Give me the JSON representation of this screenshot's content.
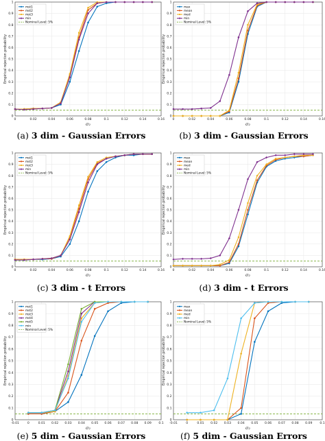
{
  "captions": [
    {
      "label": "(a)",
      "bold": "3 dim - Gaussian Errors"
    },
    {
      "label": "(b)",
      "bold": "3 dim - Gaussian Errors"
    },
    {
      "label": "(c)",
      "bold": "3 dim - t Errors"
    },
    {
      "label": "(d)",
      "bold": "3 dim - t Errors"
    },
    {
      "label": "(e)",
      "bold": "5 dim - Gaussian Errors"
    },
    {
      "label": "(f)",
      "bold": "5 dim - Gaussian Errors"
    }
  ],
  "colors": {
    "blue": "#0072BD",
    "orange": "#D95319",
    "yellow": "#EDB120",
    "purple": "#7E2F8E",
    "green": "#77AC30",
    "cyan": "#4DBEEE",
    "nominal": "#77AC30",
    "grid": "#e6e6e6"
  },
  "chart_data": [
    {
      "type": "line",
      "xlabel": "σ₂",
      "ylabel": "Empirical rejection probability",
      "xlim": [
        0,
        0.16
      ],
      "ylim": [
        0,
        1
      ],
      "xticks": [
        "0",
        "0.02",
        "0.04",
        "0.06",
        "0.08",
        "0.1",
        "0.12",
        "0.14",
        "0.16"
      ],
      "yticks": [
        "0",
        "0.1",
        "0.2",
        "0.3",
        "0.4",
        "0.5",
        "0.6",
        "0.7",
        "0.8",
        "0.9",
        "1"
      ],
      "grid": true,
      "legend_position": "top-left",
      "x": [
        0,
        0.01,
        0.02,
        0.03,
        0.04,
        0.05,
        0.06,
        0.07,
        0.08,
        0.09,
        0.1,
        0.11,
        0.12,
        0.13,
        0.14,
        0.15
      ],
      "series": [
        {
          "name": "mst1",
          "color": "#0072BD",
          "values": [
            0.06,
            0.06,
            0.065,
            0.065,
            0.07,
            0.1,
            0.3,
            0.57,
            0.82,
            0.96,
            0.99,
            1,
            1,
            1,
            1,
            1
          ]
        },
        {
          "name": "mst2",
          "color": "#D95319",
          "values": [
            0.06,
            0.06,
            0.065,
            0.065,
            0.07,
            0.12,
            0.36,
            0.69,
            0.93,
            0.99,
            1,
            1,
            1,
            1,
            1,
            1
          ]
        },
        {
          "name": "mst3",
          "color": "#EDB120",
          "values": [
            0.06,
            0.06,
            0.065,
            0.065,
            0.07,
            0.12,
            0.37,
            0.73,
            0.95,
            1,
            1,
            1,
            1,
            1,
            1,
            1
          ]
        },
        {
          "name": "min",
          "color": "#7E2F8E",
          "values": [
            0.06,
            0.055,
            0.06,
            0.065,
            0.07,
            0.11,
            0.34,
            0.67,
            0.9,
            0.99,
            1,
            1,
            1,
            1,
            1,
            1
          ]
        }
      ],
      "nominal": {
        "name": "Nominal Level: 5%",
        "value": 0.05
      }
    },
    {
      "type": "line",
      "xlabel": "σ₂",
      "ylabel": "Empirical rejection probability",
      "xlim": [
        0,
        0.16
      ],
      "ylim": [
        0,
        1
      ],
      "xticks": [
        "0",
        "0.02",
        "0.04",
        "0.06",
        "0.08",
        "0.1",
        "0.12",
        "0.14",
        "0.16"
      ],
      "yticks": [
        "0",
        "0.1",
        "0.2",
        "0.3",
        "0.4",
        "0.5",
        "0.6",
        "0.7",
        "0.8",
        "0.9",
        "1"
      ],
      "grid": true,
      "legend_position": "top-left",
      "x": [
        0,
        0.01,
        0.02,
        0.03,
        0.04,
        0.05,
        0.06,
        0.07,
        0.08,
        0.09,
        0.1,
        0.11,
        0.12,
        0.13,
        0.14,
        0.15
      ],
      "series": [
        {
          "name": "max",
          "color": "#0072BD",
          "values": [
            0,
            0,
            0,
            0,
            0,
            0,
            0.03,
            0.3,
            0.72,
            0.96,
            1,
            1,
            1,
            1,
            1,
            1
          ]
        },
        {
          "name": "mean",
          "color": "#D95319",
          "values": [
            0,
            0,
            0,
            0,
            0,
            0,
            0.04,
            0.33,
            0.75,
            0.97,
            1,
            1,
            1,
            1,
            1,
            1
          ]
        },
        {
          "name": "med",
          "color": "#EDB120",
          "values": [
            0,
            0,
            0,
            0,
            0,
            0,
            0.05,
            0.38,
            0.8,
            0.98,
            1,
            1,
            1,
            1,
            1,
            1
          ]
        },
        {
          "name": "min",
          "color": "#7E2F8E",
          "values": [
            0.06,
            0.06,
            0.06,
            0.065,
            0.07,
            0.13,
            0.36,
            0.69,
            0.92,
            0.99,
            1,
            1,
            1,
            1,
            1,
            1
          ]
        }
      ],
      "nominal": {
        "name": "Nominal Level: 5%",
        "value": 0.05
      }
    },
    {
      "type": "line",
      "xlabel": "σ₂",
      "ylabel": "Empirical rejection probability",
      "xlim": [
        0,
        0.16
      ],
      "ylim": [
        0,
        1
      ],
      "xticks": [
        "0",
        "0.02",
        "0.04",
        "0.06",
        "0.08",
        "0.1",
        "0.12",
        "0.14",
        "0.16"
      ],
      "yticks": [
        "0",
        "0.1",
        "0.2",
        "0.3",
        "0.4",
        "0.5",
        "0.6",
        "0.7",
        "0.8",
        "0.9",
        "1"
      ],
      "grid": true,
      "legend_position": "top-left",
      "x": [
        0,
        0.01,
        0.02,
        0.03,
        0.04,
        0.05,
        0.06,
        0.07,
        0.08,
        0.09,
        0.1,
        0.11,
        0.12,
        0.13,
        0.14,
        0.15
      ],
      "series": [
        {
          "name": "mst1",
          "color": "#0072BD",
          "values": [
            0.06,
            0.06,
            0.065,
            0.065,
            0.07,
            0.09,
            0.2,
            0.4,
            0.66,
            0.84,
            0.92,
            0.96,
            0.98,
            0.98,
            0.99,
            0.99
          ]
        },
        {
          "name": "mst2",
          "color": "#D95319",
          "values": [
            0.065,
            0.065,
            0.065,
            0.07,
            0.07,
            0.1,
            0.26,
            0.51,
            0.77,
            0.91,
            0.95,
            0.97,
            0.98,
            0.99,
            0.99,
            0.99
          ]
        },
        {
          "name": "mst3",
          "color": "#EDB120",
          "values": [
            0.065,
            0.065,
            0.065,
            0.07,
            0.075,
            0.1,
            0.27,
            0.54,
            0.79,
            0.92,
            0.96,
            0.97,
            0.98,
            0.99,
            0.99,
            0.99
          ]
        },
        {
          "name": "min",
          "color": "#7E2F8E",
          "values": [
            0.06,
            0.06,
            0.065,
            0.07,
            0.075,
            0.1,
            0.24,
            0.48,
            0.74,
            0.9,
            0.95,
            0.97,
            0.98,
            0.99,
            0.99,
            0.99
          ]
        }
      ],
      "nominal": {
        "name": "Nominal Level: 5%",
        "value": 0.05
      }
    },
    {
      "type": "line",
      "xlabel": "σ₂",
      "ylabel": "Empirical rejection probability",
      "xlim": [
        0,
        0.16
      ],
      "ylim": [
        0,
        1
      ],
      "xticks": [
        "0",
        "0.02",
        "0.04",
        "0.06",
        "0.08",
        "0.1",
        "0.12",
        "0.14",
        "0.16"
      ],
      "yticks": [
        "0",
        "0.1",
        "0.2",
        "0.3",
        "0.4",
        "0.5",
        "0.6",
        "0.7",
        "0.8",
        "0.9",
        "1"
      ],
      "grid": true,
      "legend_position": "top-left",
      "x": [
        0,
        0.01,
        0.02,
        0.03,
        0.04,
        0.05,
        0.06,
        0.07,
        0.08,
        0.09,
        0.1,
        0.11,
        0.12,
        0.13,
        0.14,
        0.15
      ],
      "series": [
        {
          "name": "max",
          "color": "#0072BD",
          "values": [
            0.01,
            0.01,
            0.01,
            0.01,
            0.01,
            0.01,
            0.03,
            0.18,
            0.46,
            0.74,
            0.88,
            0.93,
            0.95,
            0.96,
            0.97,
            0.98
          ]
        },
        {
          "name": "mean",
          "color": "#D95319",
          "values": [
            0.01,
            0.01,
            0.01,
            0.01,
            0.01,
            0.01,
            0.04,
            0.2,
            0.5,
            0.76,
            0.89,
            0.94,
            0.96,
            0.97,
            0.97,
            0.98
          ]
        },
        {
          "name": "med",
          "color": "#EDB120",
          "values": [
            0.01,
            0.01,
            0.01,
            0.01,
            0.01,
            0.02,
            0.06,
            0.26,
            0.56,
            0.8,
            0.9,
            0.95,
            0.96,
            0.97,
            0.98,
            0.98
          ]
        },
        {
          "name": "min",
          "color": "#7E2F8E",
          "values": [
            0.065,
            0.07,
            0.07,
            0.07,
            0.075,
            0.1,
            0.25,
            0.5,
            0.77,
            0.92,
            0.96,
            0.98,
            0.98,
            0.99,
            0.99,
            0.99
          ]
        }
      ],
      "nominal": {
        "name": "Nominal Level: 5%",
        "value": 0.05
      }
    },
    {
      "type": "line",
      "xlabel": "σ₂",
      "ylabel": "Empirical rejection probability",
      "xlim": [
        -0.01,
        0.1
      ],
      "ylim": [
        0,
        1
      ],
      "xticks": [
        "-0.01",
        "0",
        "0.01",
        "0.02",
        "0.03",
        "0.04",
        "0.05",
        "0.06",
        "0.07",
        "0.08",
        "0.09",
        "0.1"
      ],
      "yticks": [
        "0",
        "0.1",
        "0.2",
        "0.3",
        "0.4",
        "0.5",
        "0.6",
        "0.7",
        "0.8",
        "0.9",
        "1"
      ],
      "grid": true,
      "legend_position": "top-left",
      "x": [
        0,
        0.01,
        0.02,
        0.03,
        0.04,
        0.05,
        0.06,
        0.07,
        0.08,
        0.09
      ],
      "series": [
        {
          "name": "mst1",
          "color": "#0072BD",
          "values": [
            0.05,
            0.05,
            0.07,
            0.15,
            0.38,
            0.71,
            0.92,
            0.99,
            1,
            1
          ]
        },
        {
          "name": "mst2",
          "color": "#D95319",
          "values": [
            0.05,
            0.05,
            0.07,
            0.23,
            0.67,
            0.94,
            0.99,
            1,
            1,
            1
          ]
        },
        {
          "name": "mst3",
          "color": "#EDB120",
          "values": [
            0.06,
            0.06,
            0.07,
            0.37,
            0.86,
            0.99,
            1,
            1,
            1,
            1
          ]
        },
        {
          "name": "mst4",
          "color": "#7E2F8E",
          "values": [
            0.06,
            0.06,
            0.08,
            0.41,
            0.9,
            1,
            1,
            1,
            1,
            1
          ]
        },
        {
          "name": "mst5",
          "color": "#77AC30",
          "values": [
            0.06,
            0.06,
            0.08,
            0.47,
            0.94,
            1,
            1,
            1,
            1,
            1
          ]
        },
        {
          "name": "min",
          "color": "#4DBEEE",
          "values": [
            0.06,
            0.06,
            0.08,
            0.35,
            0.83,
            0.99,
            1,
            1,
            1,
            1
          ]
        }
      ],
      "nominal": {
        "name": "Nominal Level: 5%",
        "value": 0.05
      }
    },
    {
      "type": "line",
      "xlabel": "σ₂",
      "ylabel": "Empirical rejection probability",
      "xlim": [
        -0.01,
        0.1
      ],
      "ylim": [
        0,
        1
      ],
      "xticks": [
        "-0.01",
        "0",
        "0.01",
        "0.02",
        "0.03",
        "0.04",
        "0.05",
        "0.06",
        "0.07",
        "0.08",
        "0.09",
        "0.1"
      ],
      "yticks": [
        "0",
        "0.1",
        "0.2",
        "0.3",
        "0.4",
        "0.5",
        "0.6",
        "0.7",
        "0.8",
        "0.9",
        "1"
      ],
      "grid": true,
      "legend_position": "top-left",
      "x": [
        0,
        0.01,
        0.02,
        0.03,
        0.04,
        0.05,
        0.06,
        0.07,
        0.08,
        0.09
      ],
      "series": [
        {
          "name": "max",
          "color": "#0072BD",
          "values": [
            0,
            0,
            0,
            0,
            0.05,
            0.66,
            0.92,
            0.99,
            1,
            1
          ]
        },
        {
          "name": "mean",
          "color": "#D95319",
          "values": [
            0,
            0,
            0,
            0,
            0.1,
            0.86,
            0.99,
            1,
            1,
            1
          ]
        },
        {
          "name": "med",
          "color": "#EDB120",
          "values": [
            0,
            0,
            0,
            0,
            0.56,
            0.99,
            1,
            1,
            1,
            1
          ]
        },
        {
          "name": "min",
          "color": "#4DBEEE",
          "values": [
            0.06,
            0.06,
            0.08,
            0.35,
            0.86,
            0.99,
            1,
            1,
            1,
            1
          ]
        }
      ],
      "nominal": {
        "name": "Nominal Level: 5%",
        "value": 0.05
      }
    }
  ]
}
